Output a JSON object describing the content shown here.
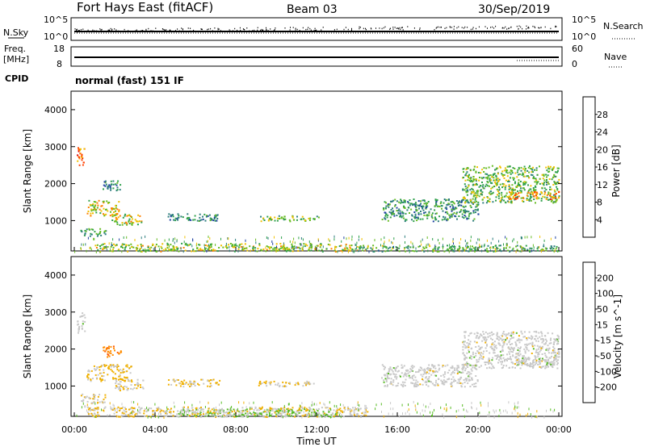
{
  "header": {
    "station": "Fort Hays East (fitACF)",
    "beam": "Beam 03",
    "date": "30/Sep/2019"
  },
  "noise_panel": {
    "left_label": "N.Sky",
    "left_ticks": [
      "10^5",
      "10^0"
    ],
    "right_ticks": [
      "10^5",
      "10^0"
    ],
    "right_label": "N.Search"
  },
  "freq_panel": {
    "left_label_1": "Freq.",
    "left_label_2": "[MHz]",
    "left_ticks": [
      "18",
      "8"
    ],
    "right_ticks": [
      "60",
      "0"
    ],
    "right_label": "Nave"
  },
  "cpid_panel": {
    "label": "CPID",
    "text": "normal (fast) 151 IF"
  },
  "colors": {
    "power_scale": [
      "#0000ff",
      "#1c3fa0",
      "#2e7e7e",
      "#2ea04a",
      "#66bb22",
      "#f0c000",
      "#ff8000",
      "#ff4000",
      "#e00000"
    ],
    "velocity_scale": [
      "#1c1cd0",
      "#1c50a0",
      "#2e7e5a",
      "#56bb22",
      "#c8c8c8",
      "#f0b000",
      "#ff8c00",
      "#ff5a00",
      "#e00000"
    ]
  },
  "chart_data": [
    {
      "type": "heatmap",
      "name": "power",
      "xlabel": "Time UT",
      "ylabel": "Slant Range [km]",
      "x_ticks": [
        "00:00",
        "04:00",
        "08:00",
        "12:00",
        "16:00",
        "20:00",
        "00:00"
      ],
      "y_ticks": [
        1000,
        2000,
        3000,
        4000
      ],
      "ylim": [
        180,
        4500
      ],
      "colorbar": {
        "label": "Power [dB]",
        "ticks": [
          "28",
          "24",
          "20",
          "16",
          "12",
          "8",
          "4"
        ],
        "range": [
          0,
          30
        ]
      },
      "echo_regions": [
        {
          "t0": 0.1,
          "t1": 0.5,
          "r0": 2450,
          "r1": 3000,
          "value": 22
        },
        {
          "t0": 0.6,
          "t1": 2.2,
          "r0": 1150,
          "r1": 1560,
          "value": 18
        },
        {
          "t0": 1.8,
          "t1": 3.3,
          "r0": 900,
          "r1": 1200,
          "value": 17
        },
        {
          "t0": 0.3,
          "t1": 1.6,
          "r0": 600,
          "r1": 800,
          "value": 12
        },
        {
          "t0": 1.4,
          "t1": 2.3,
          "r0": 1800,
          "r1": 2100,
          "value": 9
        },
        {
          "t0": 4.6,
          "t1": 7.2,
          "r0": 1000,
          "r1": 1200,
          "value": 10
        },
        {
          "t0": 9.0,
          "t1": 12.1,
          "r0": 1000,
          "r1": 1150,
          "value": 14
        },
        {
          "t0": 1.0,
          "t1": 14.0,
          "r0": 180,
          "r1": 400,
          "value": 16
        },
        {
          "t0": 15.2,
          "t1": 20.0,
          "r0": 1000,
          "r1": 1600,
          "value": 10
        },
        {
          "t0": 19.2,
          "t1": 24.0,
          "r0": 1500,
          "r1": 2500,
          "value": 14
        },
        {
          "t0": 21.5,
          "t1": 24.0,
          "r0": 1600,
          "r1": 1800,
          "value": 22
        },
        {
          "t0": 14.0,
          "t1": 24.0,
          "r0": 180,
          "r1": 350,
          "value": 12
        }
      ]
    },
    {
      "type": "heatmap",
      "name": "velocity",
      "xlabel": "Time UT",
      "ylabel": "Slant Range [km]",
      "x_ticks": [
        "00:00",
        "04:00",
        "08:00",
        "12:00",
        "16:00",
        "20:00",
        "00:00"
      ],
      "y_ticks": [
        1000,
        2000,
        3000,
        4000
      ],
      "ylim": [
        180,
        4500
      ],
      "colorbar": {
        "label": "Velocity [m s^-1]",
        "ticks": [
          "200",
          "100",
          "50",
          "15",
          "-15",
          "-50",
          "-100",
          "-200"
        ],
        "range": [
          -250,
          250
        ]
      },
      "echo_regions": [
        {
          "t0": 0.1,
          "t1": 0.5,
          "r0": 2450,
          "r1": 3000,
          "value": 0
        },
        {
          "t0": 0.6,
          "t1": 2.8,
          "r0": 1150,
          "r1": 1600,
          "value": 40
        },
        {
          "t0": 2.0,
          "t1": 3.4,
          "r0": 900,
          "r1": 1200,
          "value": 20
        },
        {
          "t0": 0.3,
          "t1": 1.6,
          "r0": 550,
          "r1": 800,
          "value": 30
        },
        {
          "t0": 1.4,
          "t1": 2.3,
          "r0": 1800,
          "r1": 2100,
          "value": 120
        },
        {
          "t0": 4.6,
          "t1": 7.2,
          "r0": 1000,
          "r1": 1200,
          "value": 30
        },
        {
          "t0": 9.0,
          "t1": 12.1,
          "r0": 1000,
          "r1": 1150,
          "value": 30
        },
        {
          "t0": 5.0,
          "t1": 13.0,
          "r0": 180,
          "r1": 400,
          "value": -40
        },
        {
          "t0": 0.5,
          "t1": 14.5,
          "r0": 180,
          "r1": 450,
          "value": 20
        },
        {
          "t0": 15.2,
          "t1": 20.0,
          "r0": 1000,
          "r1": 1600,
          "value": 0
        },
        {
          "t0": 19.2,
          "t1": 24.0,
          "r0": 1500,
          "r1": 2500,
          "value": 0
        },
        {
          "t0": 21.5,
          "t1": 24.0,
          "r0": 1600,
          "r1": 1800,
          "value": 0
        }
      ]
    }
  ]
}
